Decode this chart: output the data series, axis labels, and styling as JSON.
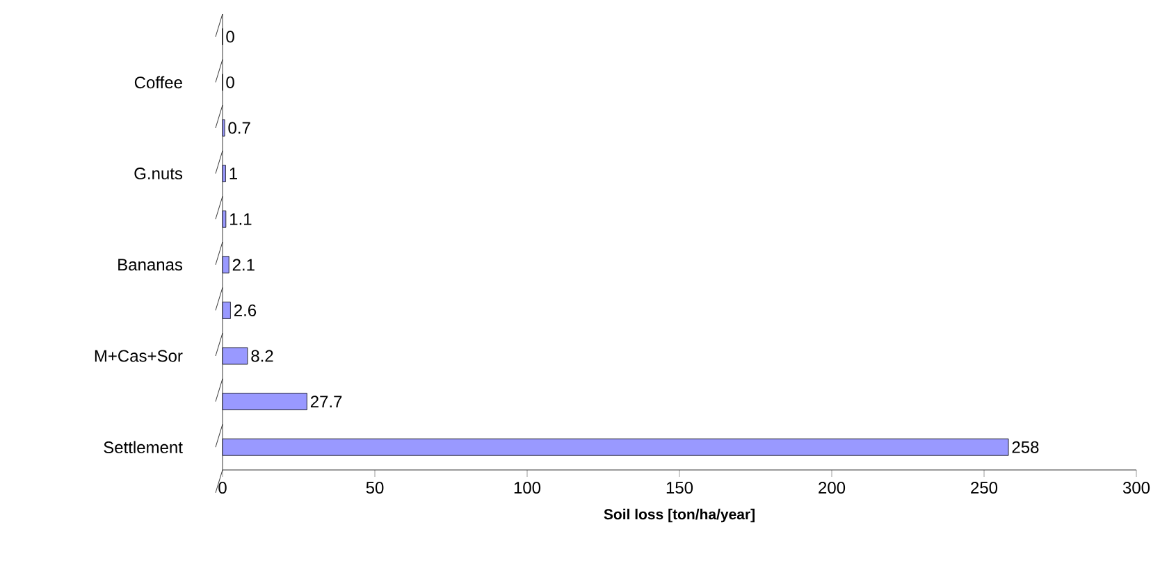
{
  "chart_data": {
    "type": "bar",
    "orientation": "horizontal",
    "xlabel": "Soil loss [ton/ha/year]",
    "categories": [
      null,
      "Coffee",
      null,
      "G.nuts",
      null,
      "Bananas",
      null,
      "M+Cas+Sor",
      null,
      "Settlement"
    ],
    "values": [
      0,
      0,
      0.7,
      1,
      1.1,
      2.1,
      2.6,
      8.2,
      27.7,
      258
    ],
    "color": "#9999ff",
    "data_labels": true,
    "grid": false,
    "xlim": [
      0,
      300
    ],
    "xticks": [
      0,
      50,
      100,
      150,
      200,
      250,
      300
    ]
  }
}
